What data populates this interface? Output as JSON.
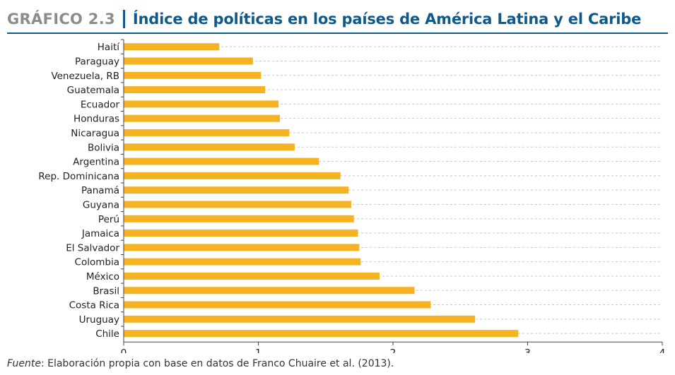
{
  "header": {
    "label": "GRÁFICO 2.3",
    "title": "Índice de políticas en los países de América Latina y el Caribe"
  },
  "source": {
    "label": "Fuente",
    "text": ": Elaboración propia con base en datos de Franco Chuaire et al. (2013)."
  },
  "chart_data": {
    "type": "bar",
    "orientation": "horizontal",
    "title": "Índice de políticas en los países de América Latina y el Caribe",
    "xlabel": "",
    "ylabel": "",
    "xlim": [
      0,
      4
    ],
    "xticks": [
      0,
      1,
      2,
      3,
      4
    ],
    "grid": "dashed horizontal",
    "bar_color": "#f5b324",
    "categories": [
      "Haití",
      "Paraguay",
      "Venezuela, RB",
      "Guatemala",
      "Ecuador",
      "Honduras",
      "Nicaragua",
      "Bolivia",
      "Argentina",
      "Rep. Dominicana",
      "Panamá",
      "Guyana",
      "Perú",
      "Jamaica",
      "El Salvador",
      "Colombia",
      "México",
      "Brasil",
      "Costa Rica",
      "Uruguay",
      "Chile"
    ],
    "values": [
      0.71,
      0.96,
      1.02,
      1.05,
      1.15,
      1.16,
      1.23,
      1.27,
      1.45,
      1.61,
      1.67,
      1.69,
      1.71,
      1.74,
      1.75,
      1.76,
      1.9,
      2.16,
      2.28,
      2.61,
      2.93
    ]
  }
}
